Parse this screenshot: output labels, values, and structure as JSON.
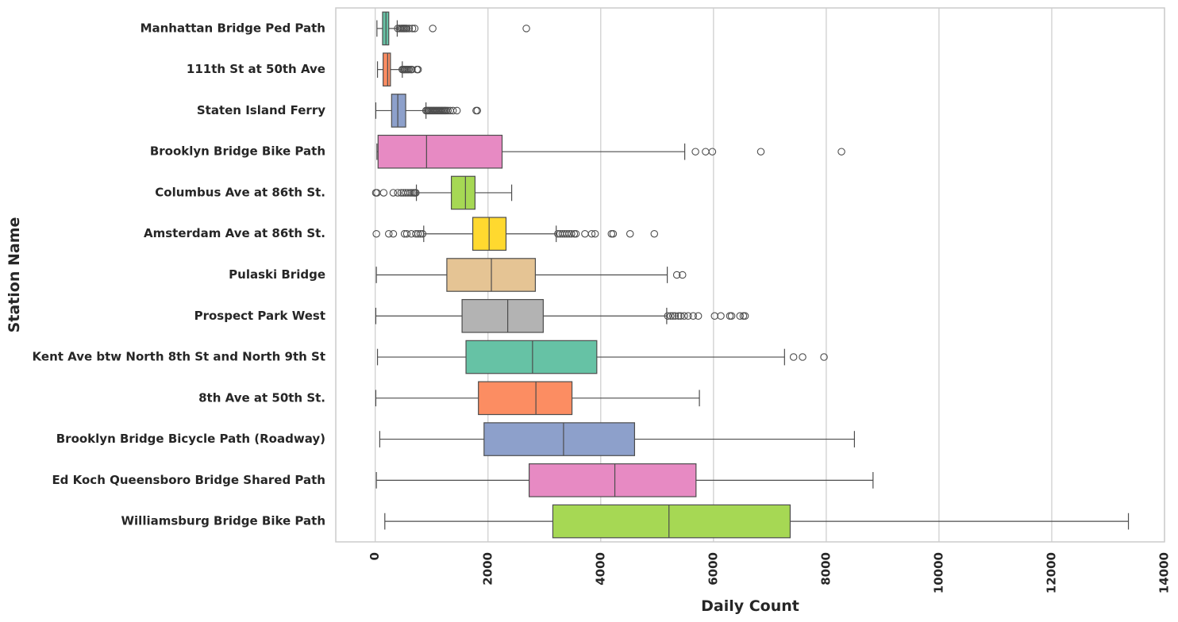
{
  "chart_data": {
    "type": "boxplot",
    "orientation": "horizontal",
    "xlabel": "Daily Count",
    "ylabel": "Station Name",
    "xlim": [
      -700,
      14000
    ],
    "xticks": [
      0,
      2000,
      4000,
      6000,
      8000,
      10000,
      12000,
      14000
    ],
    "grid": "vertical",
    "palette": [
      "#66c2a5",
      "#fc8d62",
      "#8da0cb",
      "#e78ac3",
      "#a6d854",
      "#ffd92f",
      "#e5c494",
      "#b3b3b3"
    ],
    "categories": [
      "Manhattan Bridge Ped Path",
      "111th St at 50th Ave",
      "Staten Island Ferry",
      "Brooklyn Bridge Bike Path",
      "Columbus Ave at 86th St.",
      "Amsterdam Ave at 86th St.",
      "Pulaski Bridge",
      "Prospect Park West",
      "Kent Ave btw North 8th St and North 9th St",
      "8th Ave at 50th St.",
      "Brooklyn Bridge Bicycle Path (Roadway)",
      "Ed Koch Queensboro Bridge Shared Path",
      "Williamsburg Bridge Bike Path"
    ],
    "boxes": [
      {
        "whislo": 30,
        "q1": 130,
        "med": 190,
        "q3": 240,
        "whishi": 390,
        "fliers": [
          400,
          430,
          460,
          480,
          500,
          520,
          540,
          560,
          600,
          660,
          700,
          1020,
          2680
        ]
      },
      {
        "whislo": 40,
        "q1": 140,
        "med": 220,
        "q3": 270,
        "whishi": 480,
        "fliers": [
          480,
          500,
          520,
          540,
          560,
          580,
          600,
          630,
          650,
          740,
          760
        ]
      },
      {
        "whislo": 10,
        "q1": 290,
        "med": 400,
        "q3": 540,
        "whishi": 900,
        "fliers": [
          900,
          920,
          940,
          960,
          980,
          1000,
          1020,
          1040,
          1060,
          1080,
          1100,
          1120,
          1140,
          1160,
          1180,
          1200,
          1220,
          1240,
          1260,
          1290,
          1330,
          1380,
          1450,
          1790,
          1810
        ]
      },
      {
        "whislo": 30,
        "q1": 50,
        "med": 910,
        "q3": 2250,
        "whishi": 5490,
        "fliers": [
          5680,
          5860,
          5980,
          6840,
          8270
        ]
      },
      {
        "whislo": 730,
        "q1": 1350,
        "med": 1600,
        "q3": 1770,
        "whishi": 2420,
        "fliers": [
          10,
          30,
          150,
          320,
          400,
          460,
          500,
          540,
          580,
          620,
          650,
          680,
          700,
          720
        ]
      },
      {
        "whislo": 860,
        "q1": 1730,
        "med": 2020,
        "q3": 2320,
        "whishi": 3210,
        "fliers": [
          20,
          240,
          320,
          520,
          560,
          640,
          720,
          760,
          800,
          840,
          3240,
          3280,
          3320,
          3360,
          3400,
          3440,
          3480,
          3530,
          3560,
          3720,
          3840,
          3900,
          4190,
          4220,
          4520,
          4950
        ]
      },
      {
        "whislo": 20,
        "q1": 1270,
        "med": 2060,
        "q3": 2840,
        "whishi": 5180,
        "fliers": [
          5350,
          5450
        ]
      },
      {
        "whislo": 10,
        "q1": 1540,
        "med": 2350,
        "q3": 2980,
        "whishi": 5170,
        "fliers": [
          5190,
          5240,
          5280,
          5320,
          5380,
          5420,
          5480,
          5550,
          5640,
          5730,
          6020,
          6130,
          6290,
          6320,
          6470,
          6530,
          6560
        ]
      },
      {
        "whislo": 40,
        "q1": 1610,
        "med": 2790,
        "q3": 3930,
        "whishi": 7260,
        "fliers": [
          7420,
          7580,
          7960
        ]
      },
      {
        "whislo": 10,
        "q1": 1830,
        "med": 2850,
        "q3": 3490,
        "whishi": 5750,
        "fliers": []
      },
      {
        "whislo": 80,
        "q1": 1930,
        "med": 3340,
        "q3": 4600,
        "whishi": 8500,
        "fliers": []
      },
      {
        "whislo": 20,
        "q1": 2730,
        "med": 4250,
        "q3": 5690,
        "whishi": 8830,
        "fliers": []
      },
      {
        "whislo": 170,
        "q1": 3150,
        "med": 5210,
        "q3": 7360,
        "whishi": 13360,
        "fliers": []
      }
    ]
  }
}
